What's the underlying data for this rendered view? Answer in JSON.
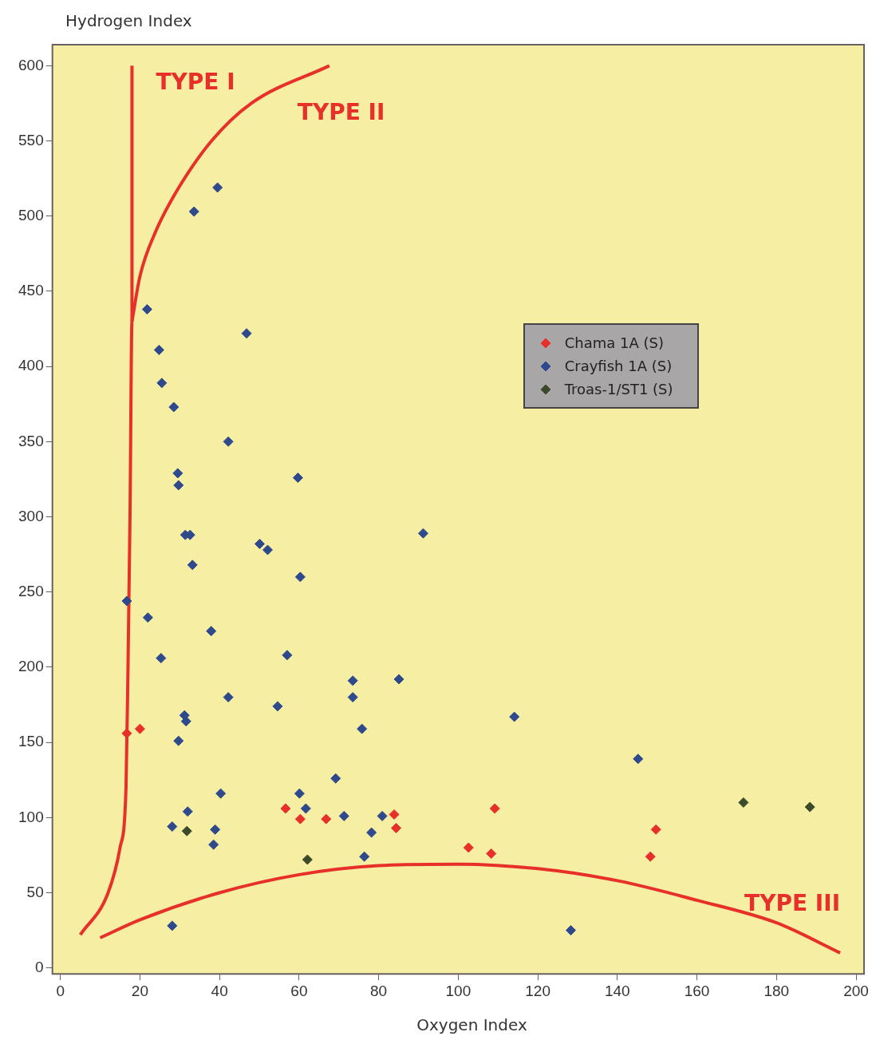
{
  "chart_data": {
    "type": "scatter",
    "xlabel": "Oxygen Index",
    "ylabel": "Hydrogen Index",
    "xlim": [
      -2,
      202
    ],
    "ylim": [
      -4,
      614
    ],
    "xticks": [
      0,
      20,
      40,
      60,
      80,
      100,
      120,
      140,
      160,
      180,
      200
    ],
    "yticks": [
      0,
      50,
      100,
      150,
      200,
      250,
      300,
      350,
      400,
      450,
      500,
      550,
      600
    ],
    "grid": false,
    "legend": "right",
    "marker": "diamond",
    "series": [
      {
        "name": "Chama 1A (S)",
        "color": "#e8302a",
        "x": [
          16.7,
          20,
          56.6,
          60.3,
          66.8,
          83.9,
          84.4,
          102.6,
          108.3,
          109.2,
          149.7,
          148.3
        ],
        "values": [
          156,
          159,
          106,
          99,
          99,
          102,
          93,
          80,
          76,
          106,
          92,
          74
        ]
      },
      {
        "name": "Crayfish 1A (S)",
        "color": "#2e4a8c",
        "x": [
          33.6,
          39.5,
          21.8,
          46.8,
          24.8,
          25.5,
          28.5,
          42.2,
          29.5,
          29.7,
          59.7,
          31.4,
          32.6,
          91.2,
          50.1,
          52.1,
          33.2,
          60.3,
          16.7,
          22,
          37.9,
          25.3,
          57,
          73.5,
          85.1,
          73.5,
          42.2,
          54.6,
          31.2,
          31.6,
          75.8,
          114.1,
          29.7,
          69.2,
          60.1,
          40.3,
          145.2,
          61.7,
          32,
          71.3,
          80.9,
          28.1,
          38.9,
          78.2,
          76.4,
          38.5,
          28.1,
          128.3
        ],
        "values": [
          503,
          519,
          438,
          422,
          411,
          389,
          373,
          350,
          329,
          321,
          326,
          288,
          288,
          289,
          282,
          278,
          268,
          260,
          244,
          233,
          224,
          206,
          208,
          191,
          192,
          180,
          180,
          174,
          168,
          164,
          159,
          167,
          151,
          126,
          116,
          116,
          139,
          106,
          104,
          101,
          101,
          94,
          92,
          90,
          74,
          82,
          28,
          25
        ]
      },
      {
        "name": "Troas-1/ST1 (S)",
        "color": "#3a4a2a",
        "x": [
          31.8,
          62.1,
          171.7,
          188.4
        ],
        "values": [
          91,
          72,
          110,
          107
        ]
      },
      {
        "type": "line",
        "name": "TYPE I",
        "color": "#e8302a",
        "marker": "none",
        "x": [
          18,
          18,
          17.5,
          17,
          16.5,
          15,
          12,
          5
        ],
        "values": [
          600,
          430,
          300,
          200,
          120,
          80,
          50,
          22
        ]
      },
      {
        "type": "line",
        "name": "TYPE II",
        "color": "#e8302a",
        "marker": "none",
        "x": [
          18,
          20,
          24,
          30,
          38,
          48,
          67.6
        ],
        "values": [
          430,
          460,
          490,
          520,
          550,
          575,
          600
        ]
      },
      {
        "type": "line",
        "name": "TYPE III",
        "color": "#e8302a",
        "marker": "none",
        "x": [
          10,
          20,
          40,
          60,
          80,
          100,
          120,
          140,
          160,
          180,
          196
        ],
        "values": [
          20,
          32,
          50,
          62,
          68,
          69,
          66,
          58,
          45,
          30,
          10
        ]
      }
    ]
  }
}
